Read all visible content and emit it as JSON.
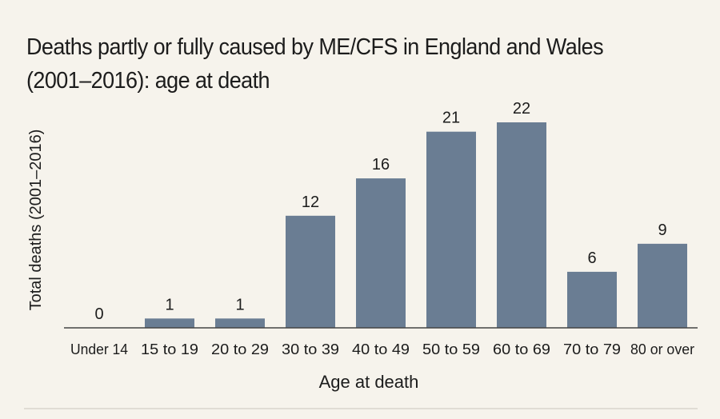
{
  "chart_data": {
    "type": "bar",
    "title": "Deaths partly or fully caused by ME/CFS in England and Wales (2001–2016): age at death",
    "xlabel": "Age at death",
    "ylabel": "Total deaths (2001–2016)",
    "categories": [
      "Under 14",
      "15 to 19",
      "20 to 29",
      "30 to 39",
      "40 to 49",
      "50 to 59",
      "60 to 69",
      "70 to 79",
      "80 or over"
    ],
    "values": [
      0,
      1,
      1,
      12,
      16,
      21,
      22,
      6,
      9
    ],
    "ylim": [
      0,
      22
    ],
    "grid": false,
    "data_labels": true,
    "colors": {
      "bar": "#6a7d93",
      "background": "#f6f3ec",
      "text": "#1c1c1c"
    }
  }
}
